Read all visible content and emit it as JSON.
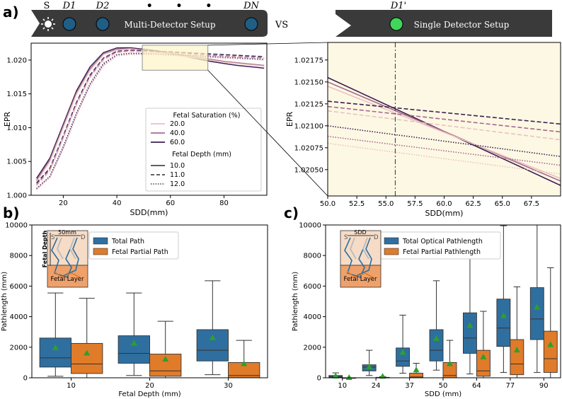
{
  "panel_labels": {
    "a": "a)",
    "b": "b)",
    "c": "c)"
  },
  "banner": {
    "multi": {
      "source_label": "S",
      "d1": "D1",
      "d2": "D2",
      "dn": "DN",
      "title": "Multi-Detector Setup",
      "dots": "• • •"
    },
    "vs": "VS",
    "single": {
      "d1p": "D1'",
      "title": "Single Detector Setup"
    },
    "colors": {
      "banner_bg": "#3a3a3a",
      "detector": "#1f5e85",
      "single_detector": "#3fd65a",
      "text": "#ffffff"
    }
  },
  "chart_data": [
    {
      "id": "a-left",
      "type": "line",
      "xlabel": "SDD(mm)",
      "ylabel": "EPR",
      "xlim": [
        8,
        96
      ],
      "ylim": [
        1.0,
        1.0225
      ],
      "xticks": [
        20,
        40,
        60,
        80
      ],
      "yticks": [
        1.0,
        1.005,
        1.01,
        1.015,
        1.02
      ],
      "ytick_labels": [
        "1.000",
        "1.005",
        "1.010",
        "1.015",
        "1.020"
      ],
      "legend": {
        "title_sat": "Fetal Saturation (%)",
        "sat_entries": [
          {
            "label": "20.0",
            "color": "#e8c3bf"
          },
          {
            "label": "40.0",
            "color": "#a9678e"
          },
          {
            "label": "60.0",
            "color": "#3a1f52"
          }
        ],
        "title_depth": "Fetal Depth (mm)",
        "depth_entries": [
          {
            "label": "10.0",
            "dash": "solid"
          },
          {
            "label": "11.0",
            "dash": "dashed"
          },
          {
            "label": "12.0",
            "dash": "dotted"
          }
        ]
      },
      "x": [
        10,
        15,
        20,
        25,
        30,
        35,
        40,
        45,
        50,
        55,
        60,
        65,
        70,
        75,
        80,
        85,
        90,
        95
      ],
      "series": [
        {
          "name": "sat60-depth10",
          "sat": 60,
          "depth": 10,
          "values": [
            1.0025,
            1.0055,
            1.0105,
            1.0155,
            1.019,
            1.0211,
            1.0218,
            1.02182,
            1.0216,
            1.02135,
            1.021,
            1.0206,
            1.0202,
            1.0198,
            1.0195,
            1.0192,
            1.019,
            1.0188
          ]
        },
        {
          "name": "sat40-depth10",
          "sat": 40,
          "depth": 10,
          "values": [
            1.0022,
            1.0052,
            1.0102,
            1.0152,
            1.0187,
            1.0209,
            1.0216,
            1.02172,
            1.0215,
            1.02125,
            1.021,
            1.0207,
            1.0204,
            1.0201,
            1.0198,
            1.0196,
            1.0194,
            1.0192
          ]
        },
        {
          "name": "sat20-depth10",
          "sat": 20,
          "depth": 10,
          "values": [
            1.002,
            1.005,
            1.01,
            1.015,
            1.0185,
            1.0208,
            1.0215,
            1.02165,
            1.02145,
            1.0212,
            1.0209,
            1.0206,
            1.0203,
            1.02,
            1.0197,
            1.0195,
            1.0193,
            1.0191
          ]
        },
        {
          "name": "sat60-depth11",
          "sat": 60,
          "depth": 11,
          "values": [
            1.0018,
            1.004,
            1.0088,
            1.0138,
            1.0178,
            1.0203,
            1.0213,
            1.02145,
            1.0214,
            1.02128,
            1.0212,
            1.0211,
            1.021,
            1.0209,
            1.0208,
            1.0207,
            1.0206,
            1.0205
          ]
        },
        {
          "name": "sat40-depth11",
          "sat": 40,
          "depth": 11,
          "values": [
            1.0016,
            1.0038,
            1.0086,
            1.0136,
            1.0176,
            1.0202,
            1.0212,
            1.02138,
            1.0213,
            1.0212,
            1.0211,
            1.021,
            1.0208,
            1.0207,
            1.0206,
            1.0205,
            1.0204,
            1.0203
          ]
        },
        {
          "name": "sat20-depth11",
          "sat": 20,
          "depth": 11,
          "values": [
            1.0014,
            1.0036,
            1.0084,
            1.0134,
            1.0174,
            1.02,
            1.0211,
            1.02128,
            1.02122,
            1.0211,
            1.021,
            1.0209,
            1.0207,
            1.0206,
            1.0205,
            1.0204,
            1.0203,
            1.0202
          ]
        },
        {
          "name": "sat60-depth12",
          "sat": 60,
          "depth": 12,
          "values": [
            1.001,
            1.0028,
            1.0072,
            1.0122,
            1.0165,
            1.0195,
            1.0208,
            1.021,
            1.02098,
            1.0209,
            1.02082,
            1.0207,
            1.0206,
            1.0205,
            1.0204,
            1.0203,
            1.0202,
            1.0201
          ]
        },
        {
          "name": "sat40-depth12",
          "sat": 40,
          "depth": 12,
          "values": [
            1.0009,
            1.0027,
            1.007,
            1.012,
            1.0163,
            1.0193,
            1.0207,
            1.0209,
            1.0209,
            1.02085,
            1.0207,
            1.0206,
            1.0205,
            1.0204,
            1.0203,
            1.0202,
            1.0201,
            1.02
          ]
        },
        {
          "name": "sat20-depth12",
          "sat": 20,
          "depth": 12,
          "values": [
            1.0008,
            1.0026,
            1.0068,
            1.0118,
            1.0161,
            1.0191,
            1.0206,
            1.0208,
            1.0208,
            1.0208,
            1.0207,
            1.0206,
            1.0205,
            1.0204,
            1.0203,
            1.0202,
            1.0201,
            1.02
          ]
        }
      ],
      "zoom_box": {
        "x": [
          49.5,
          74
        ],
        "y": [
          1.0185,
          1.0222
        ]
      }
    },
    {
      "id": "a-right",
      "type": "line",
      "xlabel": "SDD(mm)",
      "ylabel": "EPR",
      "xlim": [
        50,
        70
      ],
      "ylim": [
        1.0202,
        1.02195
      ],
      "xticks": [
        50.0,
        52.5,
        55.0,
        57.5,
        60.0,
        62.5,
        65.0,
        67.5
      ],
      "xtick_labels": [
        "50.0",
        "52.5",
        "55.0",
        "57.5",
        "60.0",
        "62.5",
        "65.0",
        "67.5"
      ],
      "yticks": [
        1.0205,
        1.02075,
        1.021,
        1.02125,
        1.0215,
        1.02175
      ],
      "ytick_labels": [
        "1.02050",
        "1.02075",
        "1.02100",
        "1.02125",
        "1.02150",
        "1.02175"
      ],
      "vline": 55.8,
      "background": "#fdf8e4",
      "x": [
        50,
        70
      ],
      "series": [
        {
          "name": "sat60-depth10",
          "sat": 60,
          "depth": 10,
          "values": [
            1.02155,
            1.02032
          ]
        },
        {
          "name": "sat40-depth10",
          "sat": 40,
          "depth": 10,
          "values": [
            1.0215,
            1.02037
          ]
        },
        {
          "name": "sat20-depth10",
          "sat": 20,
          "depth": 10,
          "values": [
            1.02145,
            1.0204
          ]
        },
        {
          "name": "sat60-depth11",
          "sat": 60,
          "depth": 11,
          "values": [
            1.02128,
            1.02102
          ]
        },
        {
          "name": "sat40-depth11",
          "sat": 40,
          "depth": 11,
          "values": [
            1.02122,
            1.02093
          ]
        },
        {
          "name": "sat20-depth11",
          "sat": 20,
          "depth": 11,
          "values": [
            1.02117,
            1.02084
          ]
        },
        {
          "name": "sat60-depth12",
          "sat": 60,
          "depth": 12,
          "values": [
            1.021,
            1.02065
          ]
        },
        {
          "name": "sat40-depth12",
          "sat": 40,
          "depth": 12,
          "values": [
            1.02088,
            1.02055
          ]
        },
        {
          "name": "sat20-depth12",
          "sat": 20,
          "depth": 12,
          "values": [
            1.0208,
            1.02045
          ]
        }
      ]
    },
    {
      "id": "b",
      "type": "box",
      "xlabel": "Fetal Depth (mm)",
      "ylabel": "Pathlength (mm)",
      "ylim": [
        0,
        10000
      ],
      "yticks": [
        0,
        2000,
        4000,
        6000,
        8000,
        10000
      ],
      "categories": [
        "10",
        "20",
        "30"
      ],
      "legend": [
        "Total Path",
        "Fetal Partial Path"
      ],
      "inset": {
        "scale_label": "50mm",
        "s": "S",
        "d": "D",
        "depth_label": "Fetal Depth",
        "layer_label": "Fetal Layer"
      },
      "series": [
        {
          "name": "Total Path",
          "color": "#2f6f9f",
          "boxes": [
            {
              "whislo": 100,
              "q1": 700,
              "med": 1300,
              "q3": 2600,
              "whishi": 5550,
              "mean": 1950
            },
            {
              "whislo": 150,
              "q1": 950,
              "med": 1600,
              "q3": 2750,
              "whishi": 5550,
              "mean": 2250
            },
            {
              "whislo": 200,
              "q1": 1100,
              "med": 1800,
              "q3": 3150,
              "whishi": 6350,
              "mean": 2600
            }
          ]
        },
        {
          "name": "Fetal Partial Path",
          "color": "#e07b2a",
          "boxes": [
            {
              "whislo": 0,
              "q1": 280,
              "med": 900,
              "q3": 2250,
              "whishi": 5200,
              "mean": 1600
            },
            {
              "whislo": 0,
              "q1": 100,
              "med": 450,
              "q3": 1550,
              "whishi": 3700,
              "mean": 1200
            },
            {
              "whislo": 0,
              "q1": 0,
              "med": 150,
              "q3": 1000,
              "whishi": 2450,
              "mean": 900
            }
          ]
        }
      ]
    },
    {
      "id": "c",
      "type": "box",
      "xlabel": "SDD (mm)",
      "ylabel": "Pathlength (mm)",
      "ylim": [
        0,
        10000
      ],
      "yticks": [
        0,
        2000,
        4000,
        6000,
        8000,
        10000
      ],
      "categories": [
        "10",
        "24",
        "37",
        "50",
        "64",
        "77",
        "90"
      ],
      "legend": [
        "Total Optical Pathlength",
        "Fetal Partial Pathlength"
      ],
      "inset": {
        "scale_label": "SDD",
        "s": "S",
        "d": "D",
        "layer_label": "Fetal Layer"
      },
      "series": [
        {
          "name": "Total Optical Pathlength",
          "color": "#2f6f9f",
          "boxes": [
            {
              "whislo": 0,
              "q1": 30,
              "med": 70,
              "q3": 150,
              "whishi": 320,
              "mean": 100
            },
            {
              "whislo": 150,
              "q1": 450,
              "med": 700,
              "q3": 850,
              "whishi": 1800,
              "mean": 700
            },
            {
              "whislo": 300,
              "q1": 750,
              "med": 1100,
              "q3": 1950,
              "whishi": 4100,
              "mean": 1650
            },
            {
              "whislo": 500,
              "q1": 1100,
              "med": 1800,
              "q3": 3150,
              "whishi": 6350,
              "mean": 2550
            },
            {
              "whislo": 250,
              "q1": 1600,
              "med": 2600,
              "q3": 4250,
              "whishi": 8250,
              "mean": 3400
            },
            {
              "whislo": 350,
              "q1": 2050,
              "med": 3250,
              "q3": 5150,
              "whishi": 9950,
              "mean": 4050
            },
            {
              "whislo": 350,
              "q1": 2500,
              "med": 3850,
              "q3": 5900,
              "whishi": 10000,
              "mean": 4600
            }
          ]
        },
        {
          "name": "Fetal Partial Pathlength",
          "color": "#e07b2a",
          "boxes": [
            {
              "whislo": 0,
              "q1": 0,
              "med": 0,
              "q3": 0,
              "whishi": 0,
              "mean": 0
            },
            {
              "whislo": 0,
              "q1": 0,
              "med": 0,
              "q3": 30,
              "whishi": 80,
              "mean": 80
            },
            {
              "whislo": 0,
              "q1": 0,
              "med": 50,
              "q3": 300,
              "whishi": 950,
              "mean": 500
            },
            {
              "whislo": 0,
              "q1": 0,
              "med": 150,
              "q3": 1000,
              "whishi": 2450,
              "mean": 900
            },
            {
              "whislo": 0,
              "q1": 100,
              "med": 450,
              "q3": 1800,
              "whishi": 4350,
              "mean": 1350
            },
            {
              "whislo": 0,
              "q1": 200,
              "med": 900,
              "q3": 2500,
              "whishi": 5950,
              "mean": 1800
            },
            {
              "whislo": 0,
              "q1": 350,
              "med": 1250,
              "q3": 3050,
              "whishi": 7200,
              "mean": 2150
            }
          ]
        }
      ]
    }
  ]
}
